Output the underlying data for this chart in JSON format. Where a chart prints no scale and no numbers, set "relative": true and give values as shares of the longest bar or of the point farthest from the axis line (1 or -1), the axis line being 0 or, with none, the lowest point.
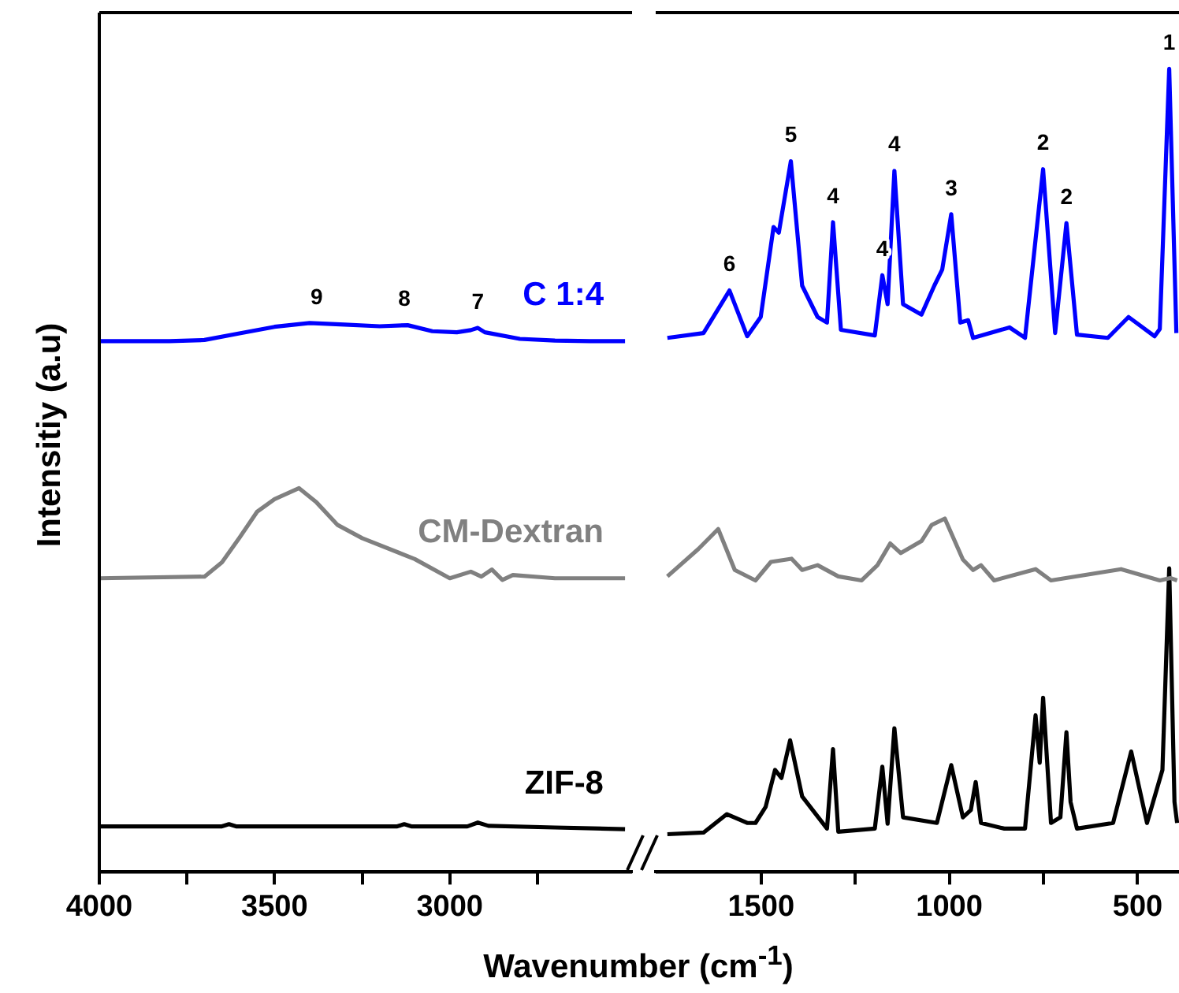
{
  "chart_data": [
    {
      "type": "line",
      "ylabel": "Intensitiy (a.u)",
      "relative": true,
      "legend": false,
      "grid": false,
      "marker": "none",
      "line_style": "solid",
      "xlim": [
        4000,
        2480
      ],
      "xticks": [
        4000,
        3500,
        3000,
        {
          "value": 3750,
          "label": null
        },
        {
          "value": 3250,
          "label": null
        },
        {
          "value": 2750,
          "label": null
        }
      ],
      "series": [
        {
          "name": "C 1:4",
          "color": "#0000ff",
          "x": [
            4000,
            3800,
            3700,
            3600,
            3500,
            3400,
            3300,
            3200,
            3120,
            3050,
            2980,
            2940,
            2920,
            2900,
            2800,
            2700,
            2600,
            2500
          ],
          "values": [
            0.967,
            0.967,
            0.969,
            0.981,
            0.993,
            1,
            0.997,
            0.994,
            0.996,
            0.985,
            0.983,
            0.987,
            0.991,
            0.983,
            0.971,
            0.968,
            0.967,
            0.967
          ]
        },
        {
          "name": "CM-Dextran",
          "color": "#808080",
          "x": [
            4000,
            3700,
            3650,
            3600,
            3550,
            3500,
            3430,
            3380,
            3320,
            3250,
            3100,
            3000,
            2940,
            2910,
            2880,
            2850,
            2820,
            2700,
            2500
          ],
          "values": [
            0.535,
            0.538,
            0.564,
            0.609,
            0.656,
            0.679,
            0.699,
            0.673,
            0.632,
            0.608,
            0.57,
            0.535,
            0.547,
            0.538,
            0.551,
            0.532,
            0.541,
            0.535,
            0.535
          ]
        },
        {
          "name": "ZIF-8",
          "color": "#000000",
          "x": [
            4000,
            3650,
            3630,
            3610,
            3150,
            3130,
            3110,
            2950,
            2920,
            2890,
            2700,
            2500
          ],
          "values": [
            0.083,
            0.083,
            0.087,
            0.083,
            0.083,
            0.087,
            0.083,
            0.083,
            0.09,
            0.084,
            0.081,
            0.078
          ]
        }
      ],
      "annotations": [
        {
          "text": "9",
          "x": 3380,
          "y": 1
        },
        {
          "text": "8",
          "x": 3130,
          "y": 0.996
        },
        {
          "text": "7",
          "x": 2920,
          "y": 0.991
        }
      ]
    },
    {
      "type": "line",
      "xlabel": "Wavenumber (cm$^{-1}$)",
      "relative": true,
      "legend": false,
      "grid": false,
      "marker": "none",
      "line_style": "solid",
      "xlim": [
        1780,
        390
      ],
      "xticks": [
        1500,
        1000,
        500,
        {
          "value": 1250,
          "label": null
        },
        {
          "value": 750,
          "label": null
        }
      ],
      "series": [
        {
          "color": "#0000ff",
          "x": [
            1749,
            1653,
            1584,
            1537,
            1501,
            1467,
            1453,
            1421,
            1391,
            1350,
            1325,
            1309,
            1288,
            1198,
            1178,
            1164,
            1146,
            1123,
            1074,
            1040,
            1019,
            995,
            971,
            950,
            937,
            840,
            799,
            751,
            719,
            689,
            661,
            579,
            524,
            455,
            441,
            416,
            397
          ],
          "values": [
            0.665,
            0.671,
            0.724,
            0.667,
            0.691,
            0.803,
            0.796,
            0.885,
            0.73,
            0.691,
            0.684,
            0.809,
            0.675,
            0.668,
            0.743,
            0.707,
            0.873,
            0.707,
            0.694,
            0.73,
            0.75,
            0.819,
            0.684,
            0.687,
            0.665,
            0.678,
            0.665,
            0.875,
            0.671,
            0.808,
            0.669,
            0.665,
            0.691,
            0.667,
            0.676,
            1.0,
            0.671
          ]
        },
        {
          "color": "#808080",
          "x": [
            1749,
            1667,
            1614,
            1570,
            1515,
            1474,
            1419,
            1391,
            1350,
            1295,
            1233,
            1191,
            1157,
            1129,
            1074,
            1047,
            1012,
            964,
            937,
            916,
            881,
            771,
            730,
            544,
            441,
            413,
            395
          ],
          "values": [
            0.368,
            0.402,
            0.427,
            0.376,
            0.363,
            0.386,
            0.39,
            0.376,
            0.382,
            0.368,
            0.363,
            0.382,
            0.409,
            0.397,
            0.412,
            0.432,
            0.44,
            0.389,
            0.376,
            0.382,
            0.363,
            0.377,
            0.363,
            0.377,
            0.363,
            0.366,
            0.363
          ]
        },
        {
          "color": "#000000",
          "x": [
            1749,
            1653,
            1591,
            1537,
            1515,
            1488,
            1463,
            1446,
            1423,
            1391,
            1325,
            1309,
            1295,
            1198,
            1178,
            1164,
            1146,
            1123,
            1033,
            995,
            964,
            943,
            930,
            916,
            854,
            799,
            771,
            760,
            751,
            730,
            705,
            689,
            678,
            661,
            565,
            517,
            475,
            434,
            416,
            402,
            395
          ],
          "values": [
            0.047,
            0.049,
            0.072,
            0.061,
            0.061,
            0.081,
            0.127,
            0.117,
            0.164,
            0.094,
            0.054,
            0.153,
            0.05,
            0.054,
            0.131,
            0.06,
            0.179,
            0.068,
            0.061,
            0.133,
            0.068,
            0.077,
            0.112,
            0.061,
            0.054,
            0.054,
            0.195,
            0.136,
            0.217,
            0.061,
            0.068,
            0.174,
            0.087,
            0.054,
            0.061,
            0.15,
            0.061,
            0.127,
            0.378,
            0.087,
            0.061
          ]
        }
      ],
      "annotations": [
        {
          "text": "6",
          "x": 1584,
          "y": 0.724
        },
        {
          "text": "5",
          "x": 1421,
          "y": 0.885
        },
        {
          "text": "4",
          "x": 1309,
          "y": 0.809
        },
        {
          "text": "4",
          "x": 1178,
          "y": 0.743
        },
        {
          "text": "4",
          "x": 1146,
          "y": 0.873
        },
        {
          "text": "3",
          "x": 995,
          "y": 0.819
        },
        {
          "text": "2",
          "x": 751,
          "y": 0.875
        },
        {
          "text": "2",
          "x": 689,
          "y": 0.808
        },
        {
          "text": "1",
          "x": 416,
          "y": 1.0
        }
      ]
    }
  ]
}
